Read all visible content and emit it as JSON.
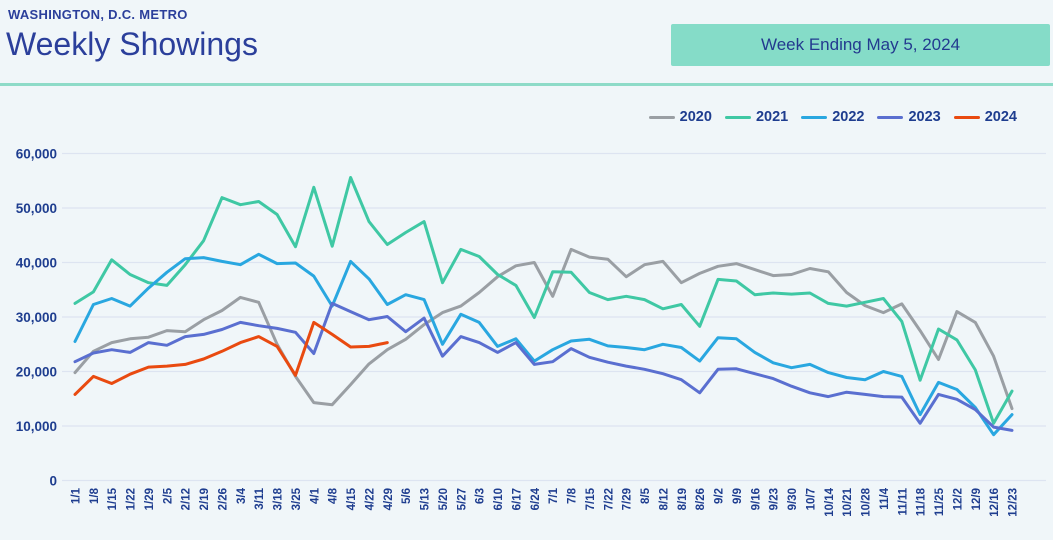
{
  "header": {
    "region": "WASHINGTON, D.C. METRO",
    "title": "Weekly Showings",
    "badge": "Week Ending May 5, 2024"
  },
  "colors": {
    "background": "#f0f6f9",
    "navy_text": "#1e3d8f",
    "title_text": "#2b3f9b",
    "badge_bg": "#85dcc8",
    "divider": "#8edbc8",
    "gridline": "#dde4f1"
  },
  "chart_data": {
    "type": "line",
    "title": "Weekly Showings",
    "xlabel": "",
    "ylabel": "",
    "ylim": [
      0,
      60000
    ],
    "y_tick_step": 10000,
    "y_ticks": [
      "0",
      "10,000",
      "20,000",
      "30,000",
      "40,000",
      "50,000",
      "60,000"
    ],
    "grid": true,
    "legend_position": "top-right",
    "x": [
      "1/1",
      "1/8",
      "1/15",
      "1/22",
      "1/29",
      "2/5",
      "2/12",
      "2/19",
      "2/26",
      "3/4",
      "3/11",
      "3/18",
      "3/25",
      "4/1",
      "4/8",
      "4/15",
      "4/22",
      "4/29",
      "5/6",
      "5/13",
      "5/20",
      "5/27",
      "6/3",
      "6/10",
      "6/17",
      "6/24",
      "7/1",
      "7/8",
      "7/15",
      "7/22",
      "7/29",
      "8/5",
      "8/12",
      "8/19",
      "8/26",
      "9/2",
      "9/9",
      "9/16",
      "9/23",
      "9/30",
      "10/7",
      "10/14",
      "10/21",
      "10/28",
      "11/4",
      "11/11",
      "11/18",
      "11/25",
      "12/2",
      "12/9",
      "12/16",
      "12/23"
    ],
    "series": [
      {
        "name": "2020",
        "color": "#9a9fa4",
        "values": [
          19800,
          23700,
          25300,
          26000,
          26300,
          27500,
          27300,
          29500,
          31200,
          33600,
          32700,
          25000,
          19100,
          14300,
          13900,
          17600,
          21400,
          24000,
          25900,
          28600,
          30800,
          32000,
          34500,
          37400,
          39400,
          40000,
          33800,
          42400,
          41000,
          40600,
          37400,
          39600,
          40200,
          36300,
          38000,
          39300,
          39800,
          38700,
          37600,
          37800,
          38900,
          38300,
          34500,
          32100,
          30800,
          32400,
          27500,
          22200,
          31000,
          29000,
          22800,
          13200
        ]
      },
      {
        "name": "2021",
        "color": "#3fc8a4",
        "values": [
          32500,
          34600,
          40500,
          37800,
          36300,
          35800,
          39600,
          44000,
          51900,
          50600,
          51200,
          48800,
          42900,
          53800,
          43000,
          55600,
          47500,
          43300,
          45500,
          47500,
          36300,
          42400,
          41100,
          37800,
          35800,
          29900,
          38300,
          38200,
          34500,
          33200,
          33800,
          33200,
          31500,
          32300,
          28300,
          36900,
          36600,
          34100,
          34400,
          34200,
          34400,
          32500,
          32000,
          32700,
          33400,
          29200,
          18400,
          27800,
          25800,
          20300,
          10500,
          16400
        ]
      },
      {
        "name": "2022",
        "color": "#29a7e0",
        "values": [
          25500,
          32300,
          33400,
          32000,
          35300,
          38200,
          40700,
          40900,
          40200,
          39600,
          41500,
          39800,
          39900,
          37500,
          32000,
          40200,
          37000,
          32300,
          34100,
          33200,
          25000,
          30500,
          29000,
          24600,
          26000,
          21900,
          24000,
          25600,
          25900,
          24700,
          24400,
          24000,
          25000,
          24400,
          21900,
          26200,
          26000,
          23500,
          21600,
          20700,
          21300,
          19800,
          18900,
          18500,
          20000,
          19100,
          12100,
          18000,
          16700,
          13400,
          8400,
          12100
        ]
      },
      {
        "name": "2023",
        "color": "#5a6fd0",
        "values": [
          21800,
          23400,
          24000,
          23500,
          25300,
          24800,
          26400,
          26800,
          27700,
          29000,
          28400,
          27900,
          27200,
          23300,
          32500,
          31000,
          29500,
          30100,
          27300,
          29800,
          22800,
          26400,
          25300,
          23500,
          25300,
          21300,
          21800,
          24200,
          22600,
          21700,
          21000,
          20400,
          19600,
          18500,
          16100,
          20400,
          20500,
          19600,
          18700,
          17300,
          16100,
          15400,
          16200,
          15800,
          15400,
          15300,
          10500,
          15800,
          14900,
          13000,
          9800,
          9200
        ]
      },
      {
        "name": "2024",
        "color": "#e94a10",
        "values": [
          15800,
          19100,
          17800,
          19500,
          20800,
          21000,
          21300,
          22300,
          23700,
          25300,
          26400,
          24600,
          19300,
          29000,
          26800,
          24500,
          24600,
          25300
        ]
      }
    ]
  }
}
